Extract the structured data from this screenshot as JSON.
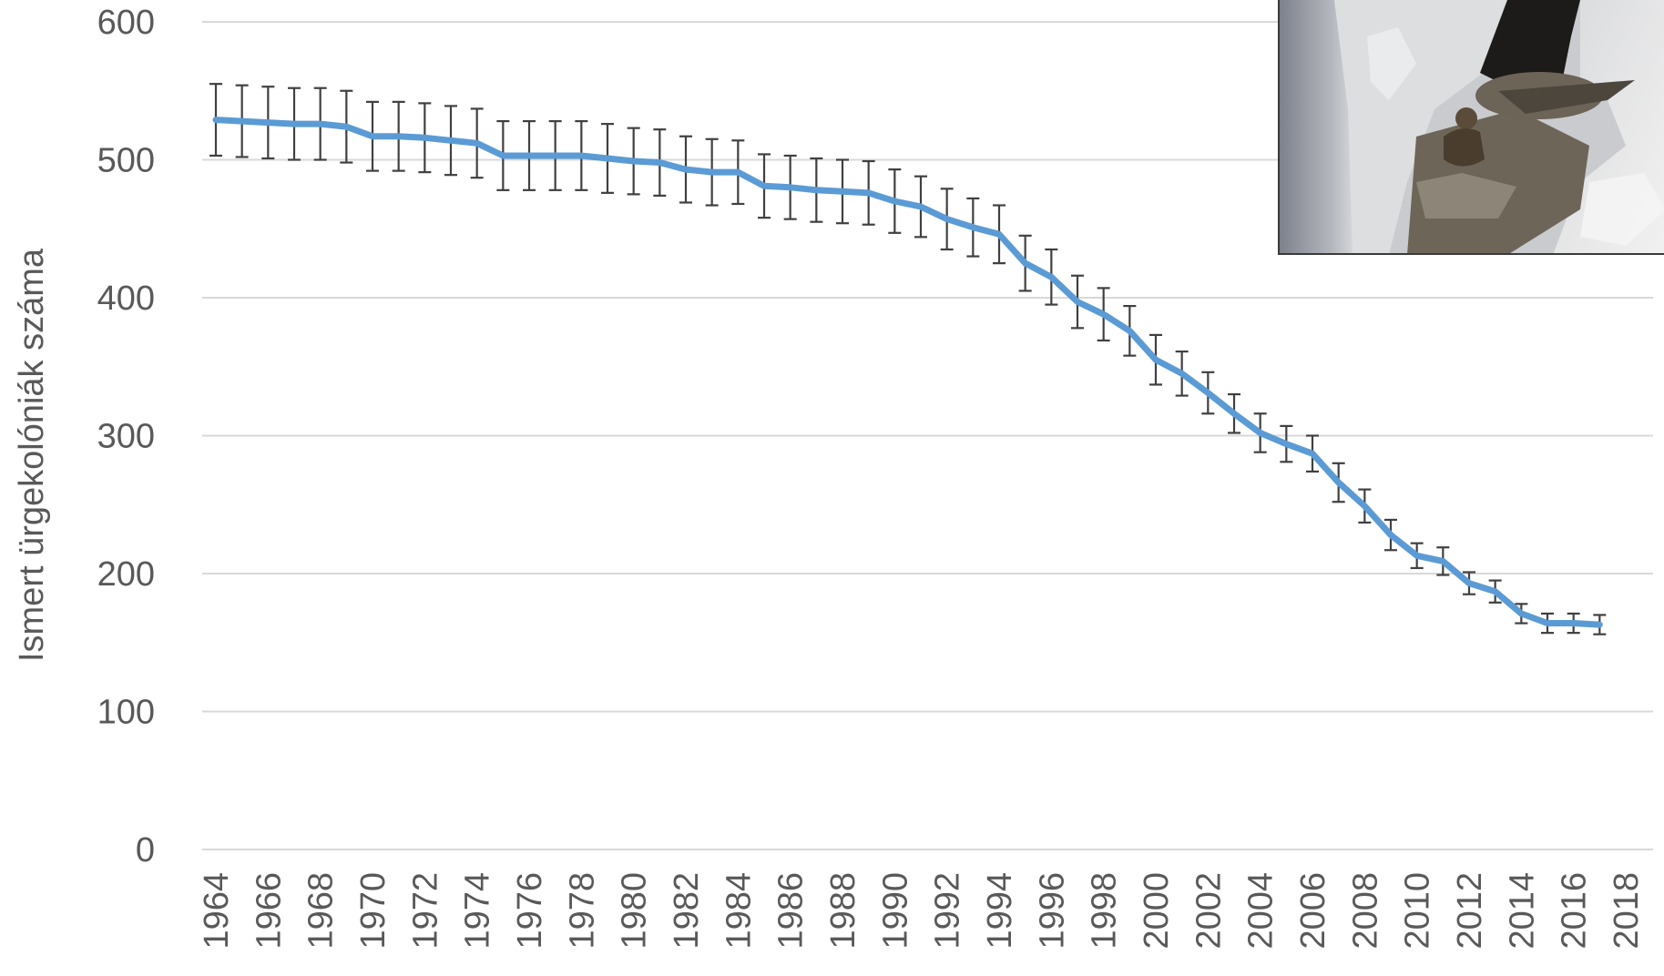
{
  "chart_data": {
    "type": "line",
    "ylabel": "Ismert ürgekolóniák száma",
    "ylim": [
      0,
      600
    ],
    "yticks": [
      "0",
      "100",
      "200",
      "300",
      "400",
      "500",
      "600"
    ],
    "xtick_labels": [
      "1964",
      "1966",
      "1968",
      "1970",
      "1972",
      "1974",
      "1976",
      "1978",
      "1980",
      "1982",
      "1984",
      "1986",
      "1988",
      "1990",
      "1992",
      "1994",
      "1996",
      "1998",
      "2000",
      "2002",
      "2004",
      "2006",
      "2008",
      "2010",
      "2012",
      "2014",
      "2016",
      "2018"
    ],
    "grid": true,
    "legend": "none",
    "line_color": "#5b9bd5",
    "error_bar_color": "#404040",
    "x": [
      1964,
      1965,
      1966,
      1967,
      1968,
      1969,
      1970,
      1971,
      1972,
      1973,
      1974,
      1975,
      1976,
      1977,
      1978,
      1979,
      1980,
      1981,
      1982,
      1983,
      1984,
      1985,
      1986,
      1987,
      1988,
      1989,
      1990,
      1991,
      1992,
      1993,
      1994,
      1995,
      1996,
      1997,
      1998,
      1999,
      2000,
      2001,
      2002,
      2003,
      2004,
      2005,
      2006,
      2007,
      2008,
      2009,
      2010,
      2011,
      2012,
      2013,
      2014,
      2015,
      2016,
      2017
    ],
    "series": [
      {
        "values": [
          529,
          528,
          527,
          526,
          526,
          524,
          517,
          517,
          516,
          514,
          512,
          503,
          503,
          503,
          503,
          501,
          499,
          498,
          493,
          491,
          491,
          481,
          480,
          478,
          477,
          476,
          470,
          466,
          457,
          451,
          446,
          425,
          415,
          397,
          388,
          376,
          355,
          345,
          331,
          316,
          302,
          294,
          287,
          266,
          249,
          228,
          213,
          209,
          193,
          187,
          171,
          164,
          164,
          163
        ],
        "error": [
          26,
          26,
          26,
          26,
          26,
          26,
          25,
          25,
          25,
          25,
          25,
          25,
          25,
          25,
          25,
          25,
          24,
          24,
          24,
          24,
          23,
          23,
          23,
          23,
          23,
          23,
          23,
          22,
          22,
          21,
          21,
          20,
          20,
          19,
          19,
          18,
          18,
          16,
          15,
          14,
          14,
          13,
          13,
          14,
          12,
          11,
          9,
          10,
          8,
          8,
          7,
          7,
          7,
          7
        ]
      }
    ]
  },
  "inset": {
    "icon": "falcon-nest-photo"
  }
}
